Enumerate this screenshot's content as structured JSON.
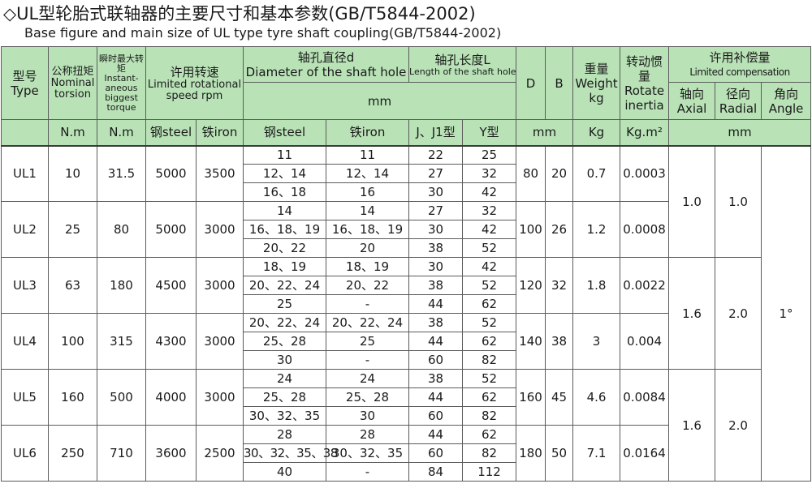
{
  "title_cn": "◇UL型轮胎式联轴器的主要尺寸和基本参数(GB/T5844-2002)",
  "title_en": "Base figure and main size of UL type tyre shaft coupling(GB/T5844-2002)",
  "headers": {
    "type_cn": "型号",
    "type_en": "Type",
    "nominal_cn": "公称扭矩",
    "nominal_en": "Nominal torsion",
    "instant_cn": "瞬时最大转矩",
    "instant_en": "Instant-aneous biggest torque",
    "speed_cn": "许用转速",
    "speed_en": "Limited rotational speed rpm",
    "diameter_cn": "轴孔直径d",
    "diameter_en": "Diameter of the shaft hole",
    "length_cn": "轴孔长度L",
    "length_en": "Length of the shaft hole",
    "mm": "mm",
    "D": "D",
    "B": "B",
    "weight_cn": "重量",
    "weight_en": "Weight",
    "weight_unit": "kg",
    "inertia_cn": "转动惯量",
    "inertia_en": "Rotate inertia",
    "comp_cn": "许用补偿量",
    "comp_en": "Limited compensation",
    "axial_cn": "轴向",
    "axial_en": "Axial",
    "radial_cn": "径向",
    "radial_en": "Radial",
    "angle_cn": "角向",
    "angle_en": "Angle",
    "unit_nm": "N.m",
    "unit_nm2": "N.m",
    "steel": "钢steel",
    "iron": "铁iron",
    "steel2": "钢steel",
    "iron2": "铁iron",
    "j_type": "J、J1型",
    "y_type": "Y型",
    "unit_mm_db": "mm",
    "unit_kg": "Kg",
    "unit_kgm2": "Kg.m²",
    "unit_mm_comp": "mm"
  },
  "models": [
    {
      "type": "UL1",
      "nominal": "10",
      "instant": "31.5",
      "speed_steel": "5000",
      "speed_iron": "3500",
      "D": "80",
      "B": "20",
      "weight": "0.7",
      "inertia": "0.0003",
      "rows": [
        {
          "d_steel": "11",
          "d_iron": "11",
          "l_j": "22",
          "l_y": "25"
        },
        {
          "d_steel": "12、14",
          "d_iron": "12、14",
          "l_j": "27",
          "l_y": "32"
        },
        {
          "d_steel": "16、18",
          "d_iron": "16",
          "l_j": "30",
          "l_y": "42"
        }
      ]
    },
    {
      "type": "UL2",
      "nominal": "25",
      "instant": "80",
      "speed_steel": "5000",
      "speed_iron": "3000",
      "D": "100",
      "B": "26",
      "weight": "1.2",
      "inertia": "0.0008",
      "rows": [
        {
          "d_steel": "14",
          "d_iron": "14",
          "l_j": "27",
          "l_y": "32"
        },
        {
          "d_steel": "16、18、19",
          "d_iron": "16、18、19",
          "l_j": "30",
          "l_y": "42"
        },
        {
          "d_steel": "20、22",
          "d_iron": "20",
          "l_j": "38",
          "l_y": "52"
        }
      ]
    },
    {
      "type": "UL3",
      "nominal": "63",
      "instant": "180",
      "speed_steel": "4500",
      "speed_iron": "3000",
      "D": "120",
      "B": "32",
      "weight": "1.8",
      "inertia": "0.0022",
      "rows": [
        {
          "d_steel": "18、19",
          "d_iron": "18、19",
          "l_j": "30",
          "l_y": "42"
        },
        {
          "d_steel": "20、22、24",
          "d_iron": "20、22",
          "l_j": "38",
          "l_y": "52"
        },
        {
          "d_steel": "25",
          "d_iron": "-",
          "l_j": "44",
          "l_y": "62"
        }
      ]
    },
    {
      "type": "UL4",
      "nominal": "100",
      "instant": "315",
      "speed_steel": "4300",
      "speed_iron": "3000",
      "D": "140",
      "B": "38",
      "weight": "3",
      "inertia": "0.004",
      "rows": [
        {
          "d_steel": "20、22、24",
          "d_iron": "20、22、24",
          "l_j": "38",
          "l_y": "52"
        },
        {
          "d_steel": "25、28",
          "d_iron": "25",
          "l_j": "44",
          "l_y": "62"
        },
        {
          "d_steel": "30",
          "d_iron": "-",
          "l_j": "60",
          "l_y": "82"
        }
      ]
    },
    {
      "type": "UL5",
      "nominal": "160",
      "instant": "500",
      "speed_steel": "4000",
      "speed_iron": "3000",
      "D": "160",
      "B": "45",
      "weight": "4.6",
      "inertia": "0.0084",
      "rows": [
        {
          "d_steel": "24",
          "d_iron": "24",
          "l_j": "38",
          "l_y": "52"
        },
        {
          "d_steel": "25、28",
          "d_iron": "25、28",
          "l_j": "44",
          "l_y": "62"
        },
        {
          "d_steel": "30、32、35",
          "d_iron": "30",
          "l_j": "60",
          "l_y": "82"
        }
      ]
    },
    {
      "type": "UL6",
      "nominal": "250",
      "instant": "710",
      "speed_steel": "3600",
      "speed_iron": "2500",
      "D": "180",
      "B": "50",
      "weight": "7.1",
      "inertia": "0.0164",
      "rows": [
        {
          "d_steel": "28",
          "d_iron": "28",
          "l_j": "44",
          "l_y": "62"
        },
        {
          "d_steel": "30、32、35、38",
          "d_iron": "30、32、35",
          "l_j": "60",
          "l_y": "82"
        },
        {
          "d_steel": "40",
          "d_iron": "-",
          "l_j": "84",
          "l_y": "112"
        }
      ]
    }
  ],
  "compensation": [
    {
      "axial": "1.0",
      "radial": "1.0"
    },
    {
      "axial": "1.6",
      "radial": "2.0"
    },
    {
      "axial": "1.6",
      "radial": "2.0"
    }
  ],
  "angle": "1°"
}
